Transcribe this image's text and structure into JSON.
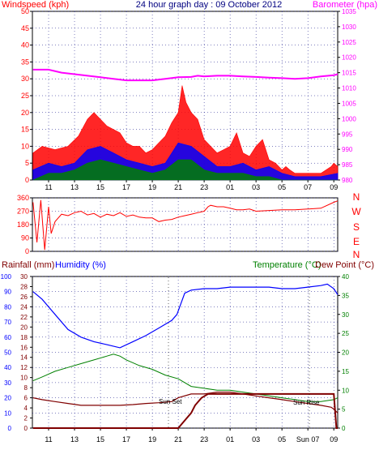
{
  "header": {
    "wind_label": "Windspeed (kph)",
    "title": "24 hour graph day : 09 October 2012",
    "baro_label": "Barometer (hpa)"
  },
  "colors": {
    "background": "#ffffff",
    "axis": "#000000",
    "grid": "#000080",
    "wind_gust": "#ff0000",
    "wind_avg": "#0000ff",
    "wind_low": "#008000",
    "barometer": "#ff00ff",
    "direction": "#ff0000",
    "humidity": "#0000ff",
    "temperature": "#008000",
    "dewpoint": "#800000",
    "rainfall": "#800000",
    "left_title": "#ff0000",
    "right_title": "#008000",
    "title": "#000080",
    "compass": "#ff0000",
    "annotation": "#000000"
  },
  "time_axis": {
    "ticks": [
      "11",
      "13",
      "15",
      "17",
      "19",
      "21",
      "23",
      "01",
      "03",
      "05",
      "07",
      "09"
    ],
    "bottom_ticks": [
      "11",
      "13",
      "15",
      "17",
      "19",
      "21",
      "23",
      "01",
      "03",
      "05",
      "Sun 07",
      "09"
    ],
    "range_hours": [
      9.75,
      33.3
    ]
  },
  "chart_data": [
    {
      "type": "area",
      "title": "24 hour graph day : 09 October 2012",
      "ylabel": "Windspeed (kph)",
      "y2label": "Barometer (hpa)",
      "ylim": [
        0,
        50
      ],
      "y2lim": [
        980,
        1035
      ],
      "y_ticks": [
        0,
        5,
        10,
        15,
        20,
        25,
        30,
        35,
        40,
        45,
        50
      ],
      "y2_ticks": [
        980,
        985,
        990,
        995,
        1000,
        1005,
        1010,
        1015,
        1020,
        1025,
        1030,
        1035
      ],
      "series": [
        {
          "name": "Windspeed gust",
          "x": [
            9.8,
            10.5,
            11.5,
            12.5,
            13.3,
            14,
            14.5,
            15,
            15.5,
            16,
            16.5,
            17,
            17.5,
            18,
            18.5,
            19,
            19.5,
            20,
            20.5,
            21,
            21.3,
            21.6,
            22,
            22.5,
            23,
            23.5,
            24,
            24.5,
            25,
            25.5,
            26,
            26.5,
            27,
            27.5,
            28,
            28.5,
            29,
            29.3,
            29.6,
            30,
            31,
            32,
            32.8,
            33,
            33.3
          ],
          "y": [
            8,
            10,
            9,
            10,
            13,
            18,
            20,
            18,
            16,
            15,
            14,
            11,
            10,
            10,
            8,
            9,
            11,
            13,
            17,
            20,
            28,
            23,
            20,
            18,
            12,
            10,
            8,
            9,
            10,
            14,
            8,
            7,
            10,
            12,
            6,
            5,
            3,
            4,
            3,
            2,
            2,
            2,
            4,
            5,
            4
          ]
        },
        {
          "name": "Windspeed average",
          "x": [
            9.8,
            11,
            12,
            13,
            14,
            15,
            16,
            17,
            18,
            19,
            20,
            21,
            22,
            23,
            24,
            25,
            26,
            27,
            28,
            29,
            30,
            31,
            32,
            33.3
          ],
          "y": [
            3,
            5,
            4,
            5,
            9,
            10,
            8,
            6,
            5,
            4,
            5,
            11,
            10,
            7,
            4,
            4,
            5,
            3,
            4,
            2,
            1,
            1,
            1,
            2
          ]
        },
        {
          "name": "Windspeed low",
          "x": [
            9.8,
            11,
            12,
            13,
            14,
            15,
            16,
            17,
            18,
            19,
            20,
            21,
            22,
            23,
            24,
            25,
            26,
            27,
            28,
            29,
            30,
            33.3
          ],
          "y": [
            0,
            2,
            2,
            3,
            5,
            6,
            5,
            4,
            3,
            2,
            3,
            6,
            6,
            3,
            2,
            2,
            2,
            1,
            1,
            0,
            0,
            0
          ]
        },
        {
          "name": "Barometer",
          "x": [
            9.8,
            11,
            12,
            13,
            14,
            15,
            16,
            17,
            18,
            19,
            20,
            21,
            22,
            22.5,
            23,
            24,
            25,
            26,
            27,
            28,
            29,
            30,
            31,
            32,
            33,
            33.3
          ],
          "y": [
            1016,
            1016,
            1015,
            1014.5,
            1014,
            1013.5,
            1013,
            1012.5,
            1012.5,
            1012.5,
            1013,
            1013.5,
            1013.6,
            1014,
            1013.8,
            1014,
            1014,
            1013.8,
            1013.6,
            1013.4,
            1013.2,
            1013,
            1013.2,
            1013.8,
            1014.2,
            1014.5
          ]
        }
      ]
    },
    {
      "type": "line",
      "ylabel": "Wind direction (degrees)",
      "ylim": [
        0,
        360
      ],
      "y_ticks": [
        0,
        90,
        180,
        270,
        360
      ],
      "compass": [
        "N",
        "W",
        "S",
        "E",
        "N"
      ],
      "series": [
        {
          "name": "Direction",
          "x": [
            9.8,
            10.1,
            10.4,
            10.7,
            11.0,
            11.2,
            11.5,
            12,
            12.5,
            13,
            13.5,
            14,
            14.5,
            15,
            15.5,
            16,
            16.5,
            17,
            17.5,
            18,
            18.5,
            19,
            19.5,
            20,
            20.5,
            21,
            21.5,
            22,
            22.5,
            23,
            23.3,
            23.5,
            24,
            24.5,
            25,
            25.5,
            26,
            26.5,
            27,
            28,
            29,
            30,
            31,
            32,
            33,
            33.3
          ],
          "y": [
            330,
            60,
            345,
            10,
            300,
            120,
            200,
            250,
            240,
            260,
            270,
            245,
            255,
            230,
            250,
            240,
            260,
            235,
            245,
            230,
            225,
            225,
            200,
            210,
            215,
            230,
            240,
            250,
            260,
            270,
            300,
            310,
            300,
            300,
            290,
            280,
            280,
            285,
            270,
            275,
            280,
            280,
            285,
            290,
            330,
            340
          ]
        }
      ]
    },
    {
      "type": "line",
      "ylabel": "Rainfall (mm) / Humidity (%)",
      "y2label": "Temperature (°C) / Dew Point (°C)",
      "ylim": [
        0,
        100
      ],
      "y_ticks": [
        0,
        10,
        20,
        30,
        40,
        50,
        60,
        70,
        80,
        90,
        100
      ],
      "rain_ticks": [
        0,
        2,
        4,
        6,
        8,
        10,
        12,
        14,
        16,
        18,
        20,
        22,
        24,
        26,
        28,
        30
      ],
      "y2lim": [
        0,
        40
      ],
      "y2_ticks": [
        0,
        5,
        10,
        15,
        20,
        25,
        30,
        35,
        40
      ],
      "annotations": [
        "Sun Set",
        "Sun Rise"
      ],
      "series": [
        {
          "name": "Humidity",
          "x": [
            9.8,
            10.5,
            11.5,
            12.5,
            13.5,
            14.5,
            15.5,
            16.5,
            17.5,
            18.5,
            19.5,
            20.5,
            20.9,
            21.2,
            21.5,
            22,
            23,
            24,
            25,
            26,
            27,
            28,
            29,
            30,
            31,
            32,
            32.5,
            33,
            33.3
          ],
          "y": [
            90,
            85,
            75,
            65,
            60,
            57,
            55,
            53,
            57,
            61,
            66,
            71,
            75,
            82,
            89,
            91,
            92,
            92,
            93,
            93,
            93,
            93,
            92,
            92,
            93,
            94,
            95,
            92,
            88
          ]
        },
        {
          "name": "Temperature",
          "x": [
            9.8,
            10.5,
            11.5,
            12.5,
            13.5,
            14.5,
            15.5,
            16,
            16.5,
            17,
            18,
            19,
            20,
            21,
            22,
            23,
            24,
            25,
            26,
            27,
            28,
            29,
            30,
            31,
            32,
            33,
            33.3
          ],
          "y": [
            12.5,
            13.5,
            15,
            16,
            17,
            18,
            19,
            19.5,
            19,
            18,
            16.5,
            15.5,
            14,
            13,
            11,
            10.5,
            10,
            10,
            9.5,
            9,
            8.5,
            8,
            7.5,
            7,
            7,
            7.5,
            8
          ]
        },
        {
          "name": "Dew Point",
          "x": [
            9.8,
            10.5,
            11.5,
            12.5,
            13.5,
            14.5,
            15.5,
            16.5,
            17.5,
            18.5,
            19.5,
            20.5,
            21,
            22,
            23,
            24,
            25,
            26,
            27,
            28,
            29,
            30,
            31,
            32,
            32.8,
            33,
            33.3
          ],
          "y": [
            8,
            7.5,
            7,
            6.5,
            6,
            6,
            6,
            6,
            6.2,
            6.5,
            6.7,
            7,
            8,
            9,
            9,
            9.5,
            9.5,
            9,
            8.5,
            8,
            7.5,
            7,
            6.5,
            6,
            5.5,
            5,
            4
          ]
        },
        {
          "name": "Rainfall",
          "x": [
            9.8,
            20.5,
            21,
            21.5,
            22,
            22.3,
            22.8,
            23.3,
            24,
            33,
            33.2,
            33.3
          ],
          "y": [
            0,
            0,
            0,
            2,
            4,
            6,
            8,
            9,
            9,
            9,
            0,
            0
          ]
        }
      ]
    }
  ],
  "panel1_left_ticks": [
    "0",
    "5",
    "10",
    "15",
    "20",
    "25",
    "30",
    "35",
    "40",
    "45",
    "50"
  ],
  "panel1_right_ticks": [
    "980",
    "985",
    "990",
    "995",
    "1000",
    "1005",
    "1010",
    "1015",
    "1020",
    "1025",
    "1030",
    "1035"
  ],
  "panel2_left_ticks": [
    "0",
    "90",
    "180",
    "270",
    "360"
  ],
  "panel2_compass": [
    "N",
    "W",
    "S",
    "E",
    "N"
  ],
  "panel3_header": {
    "rain_label": "Rainfall (mm)",
    "humidity_label": "Humidity (%)",
    "temp_label": "Temperature (°C)",
    "dew_label": "Dew Point (°C)"
  },
  "panel3_hum_ticks": [
    "0",
    "10",
    "20",
    "30",
    "40",
    "50",
    "60",
    "70",
    "80",
    "90",
    "100"
  ],
  "panel3_rain_ticks": [
    "0",
    "2",
    "4",
    "6",
    "8",
    "10",
    "12",
    "14",
    "16",
    "18",
    "20",
    "22",
    "24",
    "26",
    "28",
    "30"
  ],
  "panel3_temp_ticks": [
    "0",
    "5",
    "10",
    "15",
    "20",
    "25",
    "30",
    "35",
    "40"
  ]
}
